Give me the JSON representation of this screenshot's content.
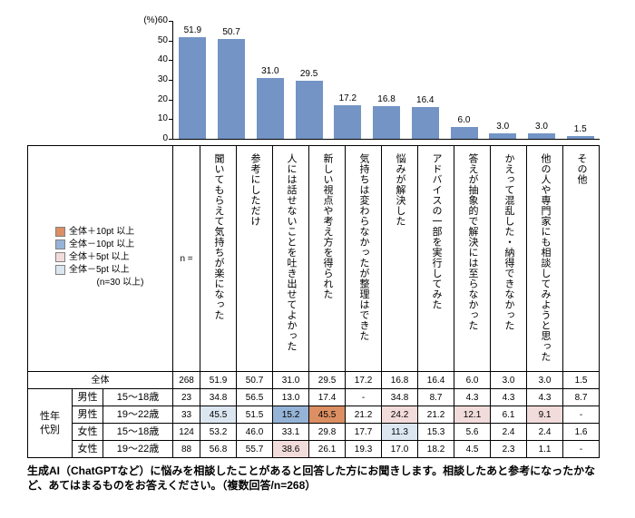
{
  "chart_data": {
    "type": "bar",
    "title": "",
    "unit_label": "(%)",
    "ylim": [
      0,
      60
    ],
    "y_ticks": [
      60,
      50,
      40,
      30,
      20,
      10,
      0
    ],
    "bar_color": "#7394c5",
    "grid": false,
    "legend_position": "none",
    "categories": [
      "聞いてもらえて気持ちが楽になった",
      "参考にしただけ",
      "人には話せないことを吐き出せてよかった",
      "新しい視点や考え方を得られた",
      "気持ちは変わらなかったが整理はできた",
      "悩みが解決した",
      "アドバイスの一部を実行してみた",
      "答えが抽象的で解決には至らなかった",
      "かえって混乱した・納得できなかった",
      "他の人や専門家にも相談してみようと思った",
      "その他"
    ],
    "values": [
      51.9,
      50.7,
      31.0,
      29.5,
      17.2,
      16.8,
      16.4,
      6.0,
      3.0,
      3.0,
      1.5
    ]
  },
  "legend": {
    "items": [
      {
        "key": "plus10",
        "label": "全体＋10pt 以上",
        "color": "#db8f62"
      },
      {
        "key": "minus10",
        "label": "全体－10pt 以上",
        "color": "#95b3d7"
      },
      {
        "key": "plus5",
        "label": "全体＋5pt 以上",
        "color": "#f2dcdb"
      },
      {
        "key": "minus5",
        "label": "全体－5pt 以上",
        "color": "#dce6f1"
      }
    ],
    "note": "(n=30 以上)"
  },
  "table": {
    "n_label": "n =",
    "group_label": "性年代別",
    "overall_row": {
      "label": "全体",
      "n": 268,
      "values": [
        "51.9",
        "50.7",
        "31.0",
        "29.5",
        "17.2",
        "16.8",
        "16.4",
        "6.0",
        "3.0",
        "3.0",
        "1.5"
      ]
    },
    "rows": [
      {
        "gender": "男性",
        "age": "15〜18歳",
        "n": 23,
        "values": [
          "34.8",
          "56.5",
          "13.0",
          "17.4",
          "-",
          "34.8",
          "8.7",
          "4.3",
          "4.3",
          "4.3",
          "8.7"
        ],
        "highlights": [
          null,
          null,
          null,
          null,
          null,
          null,
          null,
          null,
          null,
          null,
          null
        ]
      },
      {
        "gender": "男性",
        "age": "19〜22歳",
        "n": 33,
        "values": [
          "45.5",
          "51.5",
          "15.2",
          "45.5",
          "21.2",
          "24.2",
          "21.2",
          "12.1",
          "6.1",
          "9.1",
          "-"
        ],
        "highlights": [
          "minus5",
          null,
          "minus10",
          "plus10",
          null,
          "plus5",
          null,
          "plus5",
          null,
          "plus5",
          null
        ]
      },
      {
        "gender": "女性",
        "age": "15〜18歳",
        "n": 124,
        "values": [
          "53.2",
          "46.0",
          "33.1",
          "29.8",
          "17.7",
          "11.3",
          "15.3",
          "5.6",
          "2.4",
          "2.4",
          "1.6"
        ],
        "highlights": [
          null,
          null,
          null,
          null,
          null,
          "minus5",
          null,
          null,
          null,
          null,
          null
        ]
      },
      {
        "gender": "女性",
        "age": "19〜22歳",
        "n": 88,
        "values": [
          "56.8",
          "55.7",
          "38.6",
          "26.1",
          "19.3",
          "17.0",
          "18.2",
          "4.5",
          "2.3",
          "1.1",
          "-"
        ],
        "highlights": [
          null,
          null,
          "plus5",
          null,
          null,
          null,
          null,
          null,
          null,
          null,
          null
        ]
      }
    ]
  },
  "caption": "生成AI（ChatGPTなど）に悩みを相談したことがあると回答した方にお聞きします。相談したあと参考になったかなど、あてはまるものをお答えください。（複数回答/n=268）"
}
